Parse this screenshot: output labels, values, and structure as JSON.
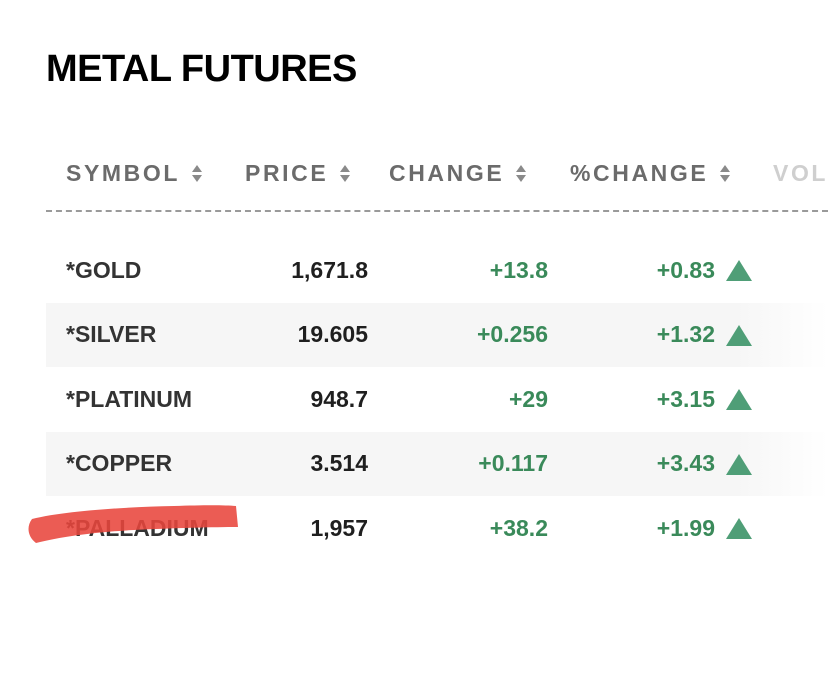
{
  "title": "METAL FUTURES",
  "columns": {
    "symbol": "SYMBOL",
    "price": "PRICE",
    "change": "CHANGE",
    "pct_change": "%CHANGE",
    "volume": "VOL"
  },
  "rows": [
    {
      "symbol": "*GOLD",
      "price": "1,671.8",
      "change": "+13.8",
      "pct_change": "+0.83",
      "direction": "up"
    },
    {
      "symbol": "*SILVER",
      "price": "19.605",
      "change": "+0.256",
      "pct_change": "+1.32",
      "direction": "up"
    },
    {
      "symbol": "*PLATINUM",
      "price": "948.7",
      "change": "+29",
      "pct_change": "+3.15",
      "direction": "up"
    },
    {
      "symbol": "*COPPER",
      "price": "3.514",
      "change": "+0.117",
      "pct_change": "+3.43",
      "direction": "up"
    },
    {
      "symbol": "*PALLADIUM",
      "price": "1,957",
      "change": "+38.2",
      "pct_change": "+1.99",
      "direction": "up"
    }
  ],
  "colors": {
    "positive": "#3a8a5a",
    "arrow": "#4f9e77",
    "highlight_mark": "#e8453c"
  },
  "icons": {
    "sort": "sort-arrows-icon",
    "up": "triangle-up-icon"
  }
}
